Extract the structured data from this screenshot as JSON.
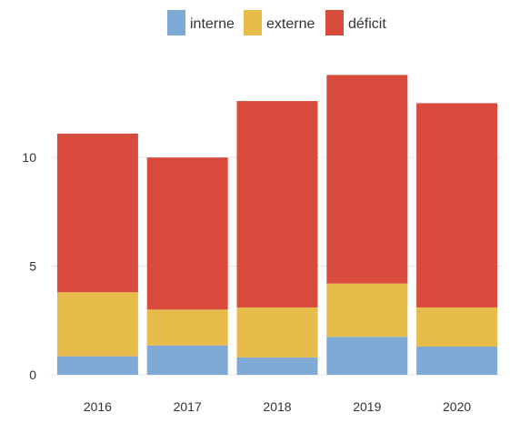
{
  "chart_data": {
    "type": "bar",
    "stacked": true,
    "categories": [
      "2016",
      "2017",
      "2018",
      "2019",
      "2020"
    ],
    "series": [
      {
        "name": "interne",
        "color": "#7faad6",
        "values": [
          0.85,
          1.35,
          0.8,
          1.75,
          1.3
        ]
      },
      {
        "name": "externe",
        "color": "#e8bc4a",
        "values": [
          2.95,
          1.65,
          2.3,
          2.45,
          1.8
        ]
      },
      {
        "name": "déficit",
        "color": "#d94b3c",
        "values": [
          7.3,
          7.0,
          9.5,
          9.6,
          9.4
        ]
      }
    ],
    "y_ticks": [
      "0",
      "5",
      "10"
    ],
    "ylim": [
      0,
      13.9
    ],
    "grid": "horizontal",
    "legend_position": "top-center"
  }
}
